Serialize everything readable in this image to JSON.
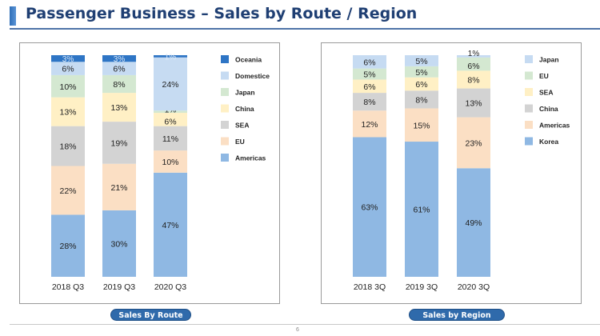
{
  "header": {
    "title": "Passenger Business – Sales by Route / Region"
  },
  "footer": {
    "page_number": "6"
  },
  "chart_data": [
    {
      "type": "bar",
      "stacked": true,
      "percent": true,
      "title": "Sales By Route",
      "categories": [
        "2018 Q3",
        "2019 Q3",
        "2020 Q3"
      ],
      "legend_position": "right",
      "series": [
        {
          "name": "Americas",
          "color": "#8fb8e3",
          "values": [
            28,
            30,
            47
          ],
          "labels": [
            "28%",
            "30%",
            "47%"
          ]
        },
        {
          "name": "EU",
          "color": "#fbdfc4",
          "values": [
            22,
            21,
            10
          ],
          "labels": [
            "22%",
            "21%",
            "10%"
          ]
        },
        {
          "name": "SEA",
          "color": "#d3d3d3",
          "values": [
            18,
            19,
            11
          ],
          "labels": [
            "18%",
            "19%",
            "11%"
          ]
        },
        {
          "name": "China",
          "color": "#fff0c5",
          "values": [
            13,
            13,
            6
          ],
          "labels": [
            "13%",
            "13%",
            "6%"
          ]
        },
        {
          "name": "Japan",
          "color": "#d4e8d1",
          "values": [
            10,
            8,
            1
          ],
          "labels": [
            "10%",
            "8%",
            "1%"
          ]
        },
        {
          "name": "Domestice",
          "color": "#c6dbf2",
          "values": [
            6,
            6,
            24
          ],
          "labels": [
            "6%",
            "6%",
            "24%"
          ]
        },
        {
          "name": "Oceania",
          "color": "#2e75c5",
          "values": [
            3,
            3,
            1
          ],
          "labels": [
            "3%",
            "3%",
            "1%"
          ]
        }
      ]
    },
    {
      "type": "bar",
      "stacked": true,
      "percent": true,
      "title": "Sales by Region",
      "categories": [
        "2018 3Q",
        "2019 3Q",
        "2020 3Q"
      ],
      "legend_position": "right",
      "series": [
        {
          "name": "Korea",
          "color": "#8fb8e3",
          "values": [
            63,
            61,
            49
          ],
          "labels": [
            "63%",
            "61%",
            "49%"
          ]
        },
        {
          "name": "Americas",
          "color": "#fbdfc4",
          "values": [
            12,
            15,
            23
          ],
          "labels": [
            "12%",
            "15%",
            "23%"
          ]
        },
        {
          "name": "China",
          "color": "#d3d3d3",
          "values": [
            8,
            8,
            13
          ],
          "labels": [
            "8%",
            "8%",
            "13%"
          ]
        },
        {
          "name": "SEA",
          "color": "#fff0c5",
          "values": [
            6,
            6,
            8
          ],
          "labels": [
            "6%",
            "6%",
            "8%"
          ]
        },
        {
          "name": "EU",
          "color": "#d4e8d1",
          "values": [
            5,
            5,
            6
          ],
          "labels": [
            "5%",
            "5%",
            "6%"
          ]
        },
        {
          "name": "Japan",
          "color": "#c6dbf2",
          "values": [
            6,
            5,
            1
          ],
          "labels": [
            "6%",
            "5%",
            "1%"
          ]
        }
      ]
    }
  ]
}
